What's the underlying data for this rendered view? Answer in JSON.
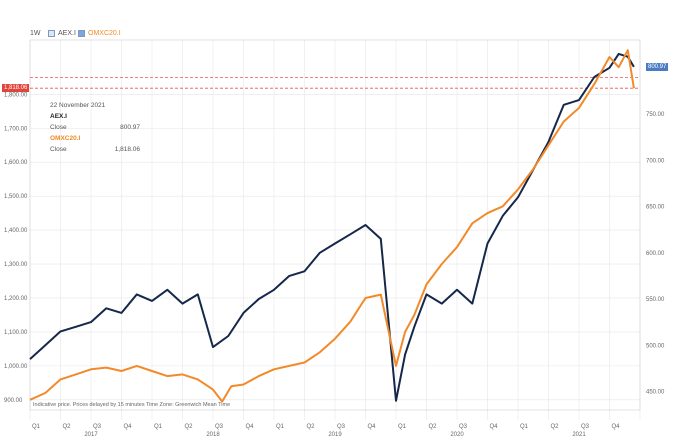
{
  "header": {
    "timeframe": "1W",
    "series_a_label": "AEX.I",
    "series_b_label": "OMXC20.I"
  },
  "tooltip": {
    "date": "22 November 2021",
    "a_name": "AEX.I",
    "a_field": "Close",
    "a_value": "800.97",
    "b_name": "OMXC20.I",
    "b_field": "Close",
    "b_value": "1,818.06"
  },
  "flags": {
    "left_value": "1,818.06",
    "right_value": "800.97",
    "left_color": "#e0443a",
    "right_color": "#4a7cc4"
  },
  "footnote": "Indicative price. Prices delayed by 15 minutes    Time Zone: Greenwich Mean Time",
  "colors": {
    "aex": "#15284a",
    "omx": "#f28a2a",
    "ref_line": "#e8574a",
    "grid": "#e6e6e6"
  },
  "chart_data": {
    "type": "line",
    "title": "",
    "left_axis": {
      "series": "OMXC20.I",
      "range": [
        870,
        1960
      ],
      "ticks": [
        900,
        1000,
        1100,
        1200,
        1300,
        1400,
        1500,
        1600,
        1700,
        1800
      ],
      "tick_labels": [
        "900.00",
        "1,000.00",
        "1,100.00",
        "1,200.00",
        "1,300.00",
        "1,400.00",
        "1,500.00",
        "1,600.00",
        "1,700.00",
        "1,800.00"
      ]
    },
    "right_axis": {
      "series": "AEX.I",
      "range": [
        430,
        830
      ],
      "ticks": [
        450,
        500,
        550,
        600,
        650,
        700,
        750
      ],
      "tick_labels": [
        "450.00",
        "500.00",
        "550.00",
        "600.00",
        "650.00",
        "700.00",
        "750.00"
      ]
    },
    "x_axis": {
      "quarters": [
        "Q1",
        "Q2",
        "Q3",
        "Q4",
        "Q1",
        "Q2",
        "Q3",
        "Q4",
        "Q1",
        "Q2",
        "Q3",
        "Q4",
        "Q1",
        "Q2",
        "Q3",
        "Q4",
        "Q1",
        "Q2",
        "Q3",
        "Q4"
      ],
      "years": [
        "2017",
        "2018",
        "2019",
        "2020",
        "2021"
      ]
    },
    "grid": true,
    "reference_lines": [
      1850,
      1818.06
    ],
    "series": [
      {
        "name": "AEX.I",
        "axis": "right",
        "x": [
          0,
          0.5,
          1,
          1.5,
          2,
          2.5,
          3,
          3.5,
          4,
          4.5,
          5,
          5.5,
          6,
          6.5,
          7,
          7.5,
          8,
          8.5,
          9,
          9.5,
          10,
          10.5,
          11,
          11.5,
          12,
          12.3,
          12.6,
          13,
          13.5,
          14,
          14.5,
          15,
          15.5,
          16,
          16.5,
          17,
          17.5,
          18,
          18.5,
          19,
          19.3,
          19.6,
          19.8
        ],
        "values": [
          485,
          500,
          515,
          520,
          525,
          540,
          535,
          555,
          548,
          560,
          545,
          555,
          498,
          510,
          535,
          550,
          560,
          575,
          580,
          600,
          610,
          620,
          630,
          615,
          440,
          490,
          520,
          555,
          545,
          560,
          545,
          610,
          640,
          660,
          690,
          720,
          760,
          765,
          790,
          800,
          815,
          812,
          800.97
        ]
      },
      {
        "name": "OMXC20.I",
        "axis": "left",
        "x": [
          0,
          0.5,
          1,
          1.5,
          2,
          2.5,
          3,
          3.5,
          4,
          4.5,
          5,
          5.5,
          6,
          6.3,
          6.6,
          7,
          7.5,
          8,
          8.5,
          9,
          9.5,
          10,
          10.5,
          11,
          11.5,
          12,
          12.3,
          12.6,
          13,
          13.5,
          14,
          14.5,
          15,
          15.5,
          16,
          16.5,
          17,
          17.5,
          18,
          18.5,
          19,
          19.3,
          19.6,
          19.8
        ],
        "values": [
          900,
          920,
          960,
          975,
          990,
          995,
          985,
          1000,
          985,
          970,
          975,
          960,
          930,
          895,
          940,
          945,
          970,
          990,
          1000,
          1010,
          1040,
          1080,
          1130,
          1200,
          1210,
          1000,
          1100,
          1150,
          1240,
          1300,
          1350,
          1420,
          1450,
          1470,
          1520,
          1580,
          1650,
          1720,
          1760,
          1830,
          1910,
          1880,
          1930,
          1818.06
        ]
      }
    ]
  }
}
